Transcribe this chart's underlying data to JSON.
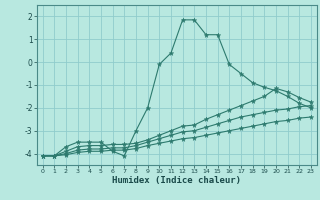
{
  "xlabel": "Humidex (Indice chaleur)",
  "background_color": "#b8e8e0",
  "grid_color": "#90cccc",
  "line_color": "#2d7a6e",
  "xlim": [
    -0.5,
    23.5
  ],
  "ylim": [
    -4.5,
    2.5
  ],
  "yticks": [
    -4,
    -3,
    -2,
    -1,
    0,
    1,
    2
  ],
  "xticks": [
    0,
    1,
    2,
    3,
    4,
    5,
    6,
    7,
    8,
    9,
    10,
    11,
    12,
    13,
    14,
    15,
    16,
    17,
    18,
    19,
    20,
    21,
    22,
    23
  ],
  "series": [
    {
      "x": [
        0,
        1,
        2,
        3,
        4,
        5,
        6,
        7,
        8,
        9,
        10,
        11,
        12,
        13,
        14,
        15,
        16,
        17,
        18,
        19,
        20,
        21,
        22,
        23
      ],
      "y": [
        -4.1,
        -4.1,
        -3.7,
        -3.5,
        -3.5,
        -3.5,
        -3.9,
        -4.1,
        -3.0,
        -2.0,
        -0.1,
        0.4,
        1.85,
        1.85,
        1.2,
        1.2,
        -0.1,
        -0.5,
        -0.9,
        -1.1,
        -1.25,
        -1.5,
        -1.8,
        -2.0
      ]
    },
    {
      "x": [
        0,
        1,
        2,
        3,
        4,
        5,
        6,
        7,
        8,
        9,
        10,
        11,
        12,
        13,
        14,
        15,
        16,
        17,
        18,
        19,
        20,
        21,
        22,
        23
      ],
      "y": [
        -4.1,
        -4.1,
        -3.9,
        -3.7,
        -3.65,
        -3.65,
        -3.6,
        -3.6,
        -3.55,
        -3.4,
        -3.2,
        -3.0,
        -2.8,
        -2.75,
        -2.5,
        -2.3,
        -2.1,
        -1.9,
        -1.7,
        -1.5,
        -1.15,
        -1.3,
        -1.55,
        -1.75
      ]
    },
    {
      "x": [
        0,
        1,
        2,
        3,
        4,
        5,
        6,
        7,
        8,
        9,
        10,
        11,
        12,
        13,
        14,
        15,
        16,
        17,
        18,
        19,
        20,
        21,
        22,
        23
      ],
      "y": [
        -4.1,
        -4.1,
        -4.0,
        -3.85,
        -3.8,
        -3.8,
        -3.75,
        -3.75,
        -3.65,
        -3.5,
        -3.35,
        -3.2,
        -3.05,
        -3.0,
        -2.85,
        -2.7,
        -2.55,
        -2.4,
        -2.3,
        -2.2,
        -2.1,
        -2.05,
        -1.95,
        -1.9
      ]
    },
    {
      "x": [
        0,
        1,
        2,
        3,
        4,
        5,
        6,
        7,
        8,
        9,
        10,
        11,
        12,
        13,
        14,
        15,
        16,
        17,
        18,
        19,
        20,
        21,
        22,
        23
      ],
      "y": [
        -4.1,
        -4.1,
        -4.05,
        -3.95,
        -3.9,
        -3.9,
        -3.85,
        -3.85,
        -3.78,
        -3.65,
        -3.55,
        -3.45,
        -3.35,
        -3.3,
        -3.2,
        -3.1,
        -3.0,
        -2.9,
        -2.8,
        -2.7,
        -2.6,
        -2.55,
        -2.45,
        -2.4
      ]
    }
  ]
}
